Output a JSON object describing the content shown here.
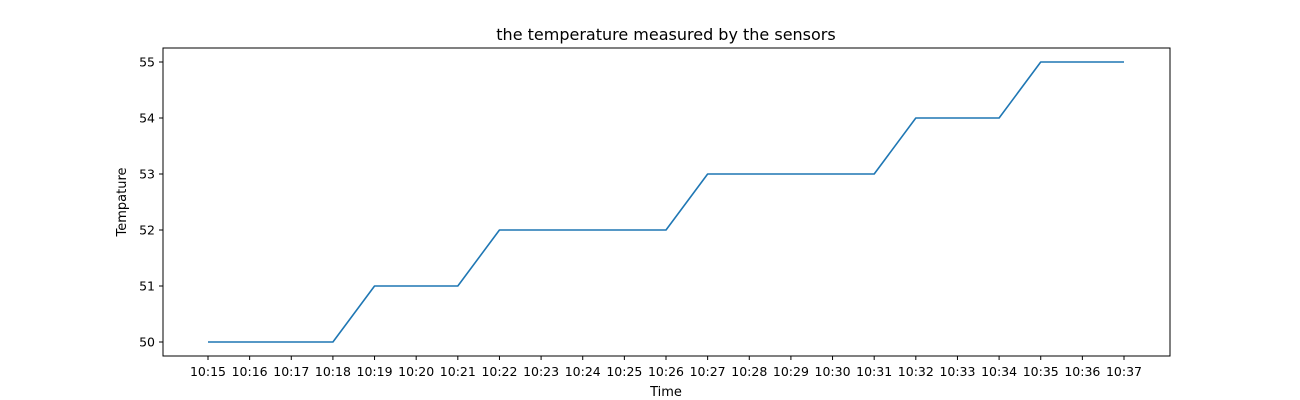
{
  "chart_data": {
    "type": "line",
    "title": "the temperature measured by the sensors",
    "xlabel": "Time",
    "ylabel": "Tempature",
    "x": [
      "10:15",
      "10:16",
      "10:17",
      "10:18",
      "10:19",
      "10:20",
      "10:21",
      "10:22",
      "10:23",
      "10:24",
      "10:25",
      "10:26",
      "10:27",
      "10:28",
      "10:29",
      "10:30",
      "10:31",
      "10:32",
      "10:33",
      "10:34",
      "10:35",
      "10:36",
      "10:37"
    ],
    "series": [
      {
        "color": "#1f77b4",
        "values": [
          50,
          50,
          50,
          50,
          51,
          51,
          51,
          52,
          52,
          52,
          52,
          52,
          53,
          53,
          53,
          53,
          53,
          54,
          54,
          54,
          55,
          55,
          55
        ]
      }
    ],
    "yticks": [
      50,
      51,
      52,
      53,
      54,
      55
    ],
    "ylim": [
      49.75,
      55.25
    ],
    "grid": false,
    "legend": "none"
  }
}
